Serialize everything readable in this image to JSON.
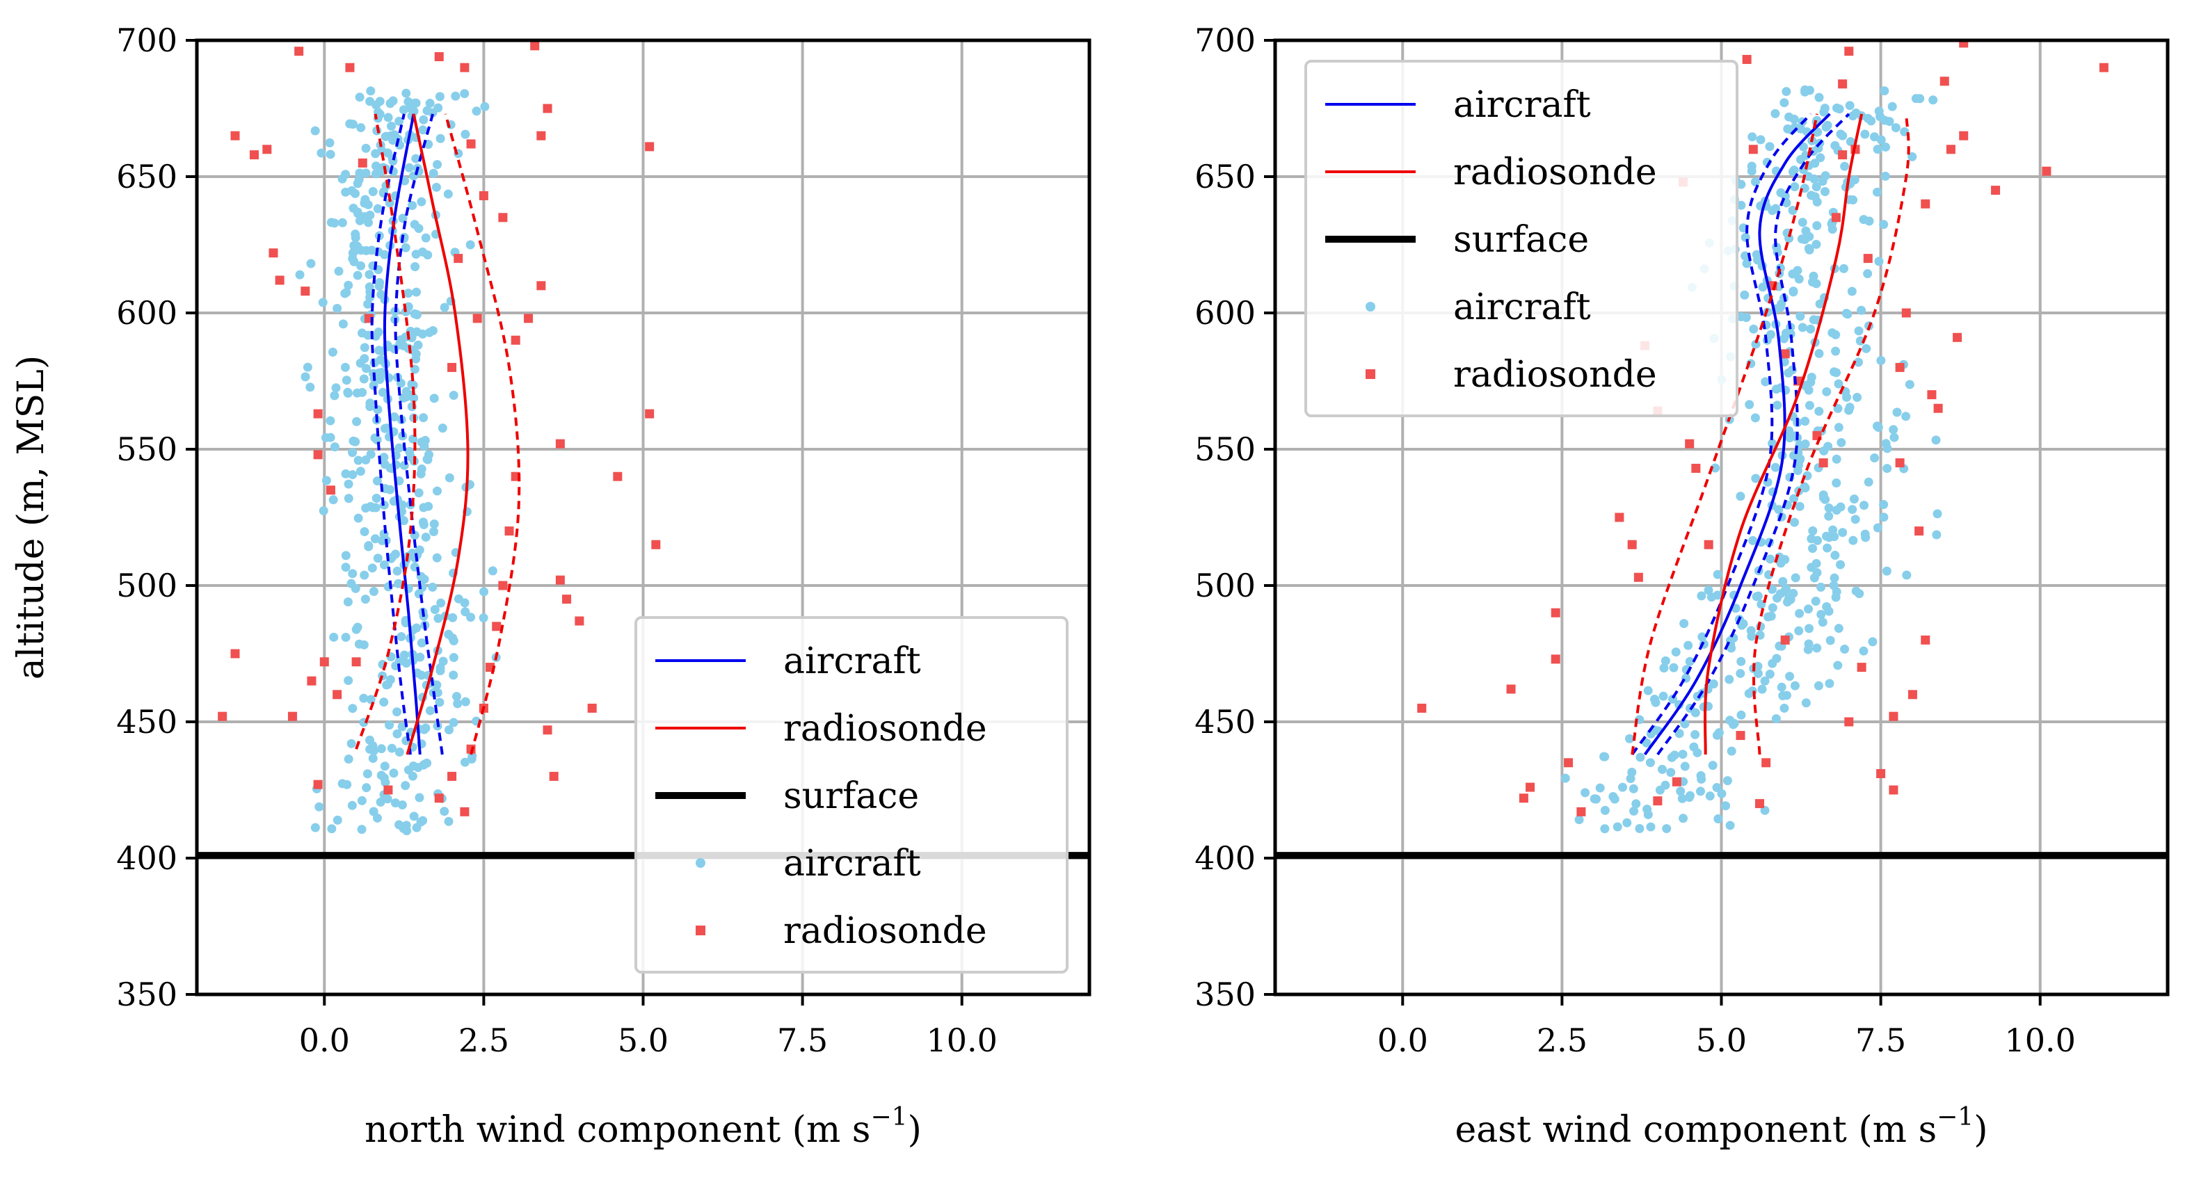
{
  "chart_data": [
    {
      "type": "scatter",
      "panel": "left",
      "xlabel": "north wind component (m s",
      "xlabel_exponent": "−1",
      "xlabel_close": ")",
      "ylabel": "altitude (m, MSL)",
      "xlim": [
        -2.0,
        12.0
      ],
      "ylim": [
        350,
        700
      ],
      "xticks": [
        0.0,
        2.5,
        5.0,
        7.5,
        10.0
      ],
      "xtick_labels": [
        "0.0",
        "2.5",
        "5.0",
        "7.5",
        "10.0"
      ],
      "yticks": [
        350,
        400,
        450,
        500,
        550,
        600,
        650,
        700
      ],
      "ytick_labels": [
        "350",
        "400",
        "450",
        "500",
        "550",
        "600",
        "650",
        "700"
      ],
      "grid": true,
      "legend_position": "lower-right",
      "surface_altitude": 401,
      "series": [
        {
          "name": "aircraft",
          "kind": "line",
          "color": "#0000ee",
          "points": [
            [
              1.5,
              438
            ],
            [
              1.43,
              460
            ],
            [
              1.32,
              490
            ],
            [
              1.15,
              530
            ],
            [
              1.0,
              570
            ],
            [
              0.95,
              600
            ],
            [
              1.1,
              635
            ],
            [
              1.4,
              673
            ]
          ]
        },
        {
          "name": "aircraft upper bound",
          "kind": "dashed",
          "color": "#0000ee",
          "points": [
            [
              1.85,
              438
            ],
            [
              1.72,
              460
            ],
            [
              1.55,
              490
            ],
            [
              1.35,
              530
            ],
            [
              1.18,
              570
            ],
            [
              1.12,
              600
            ],
            [
              1.28,
              635
            ],
            [
              1.7,
              673
            ]
          ]
        },
        {
          "name": "aircraft lower bound",
          "kind": "dashed",
          "color": "#0000ee",
          "points": [
            [
              1.35,
              438
            ],
            [
              1.22,
              460
            ],
            [
              1.08,
              490
            ],
            [
              0.92,
              530
            ],
            [
              0.8,
              570
            ],
            [
              0.75,
              600
            ],
            [
              0.9,
              635
            ],
            [
              1.25,
              673
            ]
          ]
        },
        {
          "name": "radiosonde",
          "kind": "line",
          "color": "#ee0000",
          "points": [
            [
              1.3,
              438
            ],
            [
              1.7,
              470
            ],
            [
              2.1,
              510
            ],
            [
              2.25,
              550
            ],
            [
              2.05,
              600
            ],
            [
              1.7,
              640
            ],
            [
              1.4,
              673
            ]
          ]
        },
        {
          "name": "radiosonde upper bound",
          "kind": "dashed",
          "color": "#ee0000",
          "points": [
            [
              2.3,
              438
            ],
            [
              2.75,
              480
            ],
            [
              3.05,
              530
            ],
            [
              2.9,
              580
            ],
            [
              2.4,
              630
            ],
            [
              1.9,
              673
            ]
          ]
        },
        {
          "name": "radiosonde lower bound",
          "kind": "dashed",
          "color": "#ee0000",
          "points": [
            [
              0.5,
              440
            ],
            [
              1.0,
              475
            ],
            [
              1.35,
              520
            ],
            [
              1.4,
              570
            ],
            [
              1.1,
              630
            ],
            [
              0.8,
              673
            ]
          ]
        },
        {
          "name": "aircraft",
          "kind": "scatter",
          "color": "#87ceeb",
          "x_center_by_altitude": [
            [
              410,
              1.0
            ],
            [
              440,
              1.2
            ],
            [
              480,
              1.4
            ],
            [
              520,
              1.1
            ],
            [
              560,
              0.9
            ],
            [
              600,
              0.9
            ],
            [
              640,
              1.1
            ],
            [
              680,
              1.3
            ]
          ],
          "x_spread": 1.2,
          "count": 520
        },
        {
          "name": "radiosonde",
          "kind": "scatter",
          "color": "#f05050",
          "points": [
            [
              -1.6,
              452
            ],
            [
              -1.4,
              475
            ],
            [
              -1.4,
              665
            ],
            [
              -1.1,
              658
            ],
            [
              -0.9,
              660
            ],
            [
              -0.8,
              622
            ],
            [
              -0.7,
              612
            ],
            [
              -0.5,
              452
            ],
            [
              -0.4,
              696
            ],
            [
              -0.3,
              608
            ],
            [
              -0.2,
              465
            ],
            [
              -0.1,
              563
            ],
            [
              -0.1,
              548
            ],
            [
              -0.1,
              427
            ],
            [
              0.0,
              472
            ],
            [
              0.1,
              535
            ],
            [
              0.2,
              460
            ],
            [
              0.4,
              690
            ],
            [
              0.5,
              472
            ],
            [
              0.6,
              655
            ],
            [
              0.7,
              598
            ],
            [
              1.0,
              425
            ],
            [
              1.8,
              422
            ],
            [
              2.0,
              430
            ],
            [
              2.2,
              417
            ],
            [
              2.3,
              440
            ],
            [
              2.5,
              455
            ],
            [
              2.6,
              470
            ],
            [
              2.7,
              485
            ],
            [
              2.8,
              500
            ],
            [
              2.9,
              520
            ],
            [
              3.0,
              540
            ],
            [
              2.4,
              598
            ],
            [
              2.0,
              580
            ],
            [
              2.1,
              620
            ],
            [
              1.8,
              694
            ],
            [
              2.2,
              690
            ],
            [
              2.3,
              662
            ],
            [
              2.5,
              643
            ],
            [
              2.8,
              635
            ],
            [
              3.0,
              590
            ],
            [
              3.2,
              598
            ],
            [
              3.4,
              610
            ],
            [
              3.4,
              665
            ],
            [
              3.3,
              698
            ],
            [
              3.5,
              675
            ],
            [
              3.6,
              430
            ],
            [
              3.7,
              552
            ],
            [
              3.7,
              502
            ],
            [
              3.8,
              495
            ],
            [
              4.0,
              487
            ],
            [
              4.2,
              455
            ],
            [
              4.6,
              540
            ],
            [
              5.1,
              563
            ],
            [
              5.1,
              661
            ],
            [
              5.2,
              515
            ],
            [
              3.5,
              447
            ]
          ]
        }
      ],
      "legend": [
        {
          "label": "aircraft",
          "kind": "line",
          "color": "#0000ee"
        },
        {
          "label": "radiosonde",
          "kind": "line",
          "color": "#ee0000"
        },
        {
          "label": "surface",
          "kind": "thick",
          "color": "#000000"
        },
        {
          "label": "aircraft",
          "kind": "dot",
          "color": "#87ceeb"
        },
        {
          "label": "radiosonde",
          "kind": "square",
          "color": "#f05050"
        }
      ]
    },
    {
      "type": "scatter",
      "panel": "right",
      "xlabel": "east wind component (m s",
      "xlabel_exponent": "−1",
      "xlabel_close": ")",
      "ylabel": "",
      "xlim": [
        -2.0,
        12.0
      ],
      "ylim": [
        350,
        700
      ],
      "xticks": [
        0.0,
        2.5,
        5.0,
        7.5,
        10.0
      ],
      "xtick_labels": [
        "0.0",
        "2.5",
        "5.0",
        "7.5",
        "10.0"
      ],
      "yticks": [
        350,
        400,
        450,
        500,
        550,
        600,
        650,
        700
      ],
      "ytick_labels": [
        "350",
        "400",
        "450",
        "500",
        "550",
        "600",
        "650",
        "700"
      ],
      "grid": true,
      "legend_position": "upper-left",
      "surface_altitude": 401,
      "series": [
        {
          "name": "aircraft",
          "kind": "line",
          "color": "#0000ee",
          "points": [
            [
              3.8,
              438
            ],
            [
              4.6,
              465
            ],
            [
              5.3,
              500
            ],
            [
              5.95,
              545
            ],
            [
              5.9,
              590
            ],
            [
              5.6,
              630
            ],
            [
              6.0,
              655
            ],
            [
              6.7,
              673
            ]
          ]
        },
        {
          "name": "aircraft upper bound",
          "kind": "dashed",
          "color": "#0000ee",
          "points": [
            [
              4.0,
              438
            ],
            [
              4.8,
              465
            ],
            [
              5.5,
              500
            ],
            [
              6.15,
              545
            ],
            [
              6.1,
              590
            ],
            [
              5.85,
              630
            ],
            [
              6.3,
              655
            ],
            [
              7.0,
              673
            ]
          ]
        },
        {
          "name": "aircraft lower bound",
          "kind": "dashed",
          "color": "#0000ee",
          "points": [
            [
              3.6,
              438
            ],
            [
              4.4,
              465
            ],
            [
              5.1,
              500
            ],
            [
              5.75,
              545
            ],
            [
              5.7,
              590
            ],
            [
              5.4,
              630
            ],
            [
              5.75,
              655
            ],
            [
              6.4,
              673
            ]
          ]
        },
        {
          "name": "radiosonde",
          "kind": "line",
          "color": "#ee0000",
          "points": [
            [
              4.75,
              438
            ],
            [
              4.8,
              470
            ],
            [
              5.3,
              520
            ],
            [
              6.2,
              570
            ],
            [
              6.8,
              620
            ],
            [
              7.0,
              650
            ],
            [
              7.2,
              673
            ]
          ]
        },
        {
          "name": "radiosonde upper bound",
          "kind": "dashed",
          "color": "#ee0000",
          "points": [
            [
              5.6,
              438
            ],
            [
              5.55,
              480
            ],
            [
              6.3,
              540
            ],
            [
              7.4,
              600
            ],
            [
              7.9,
              650
            ],
            [
              7.9,
              673
            ]
          ]
        },
        {
          "name": "radiosonde lower bound",
          "kind": "dashed",
          "color": "#ee0000",
          "points": [
            [
              3.6,
              438
            ],
            [
              3.9,
              480
            ],
            [
              4.8,
              540
            ],
            [
              5.7,
              600
            ],
            [
              6.2,
              640
            ],
            [
              6.5,
              673
            ]
          ]
        },
        {
          "name": "aircraft",
          "kind": "scatter",
          "color": "#87ceeb",
          "x_center_by_altitude": [
            [
              410,
              3.8
            ],
            [
              440,
              4.2
            ],
            [
              480,
              5.8
            ],
            [
              520,
              6.6
            ],
            [
              560,
              6.6
            ],
            [
              600,
              6.2
            ],
            [
              640,
              6.3
            ],
            [
              680,
              7.0
            ]
          ],
          "x_spread": 1.6,
          "count": 520
        },
        {
          "name": "radiosonde",
          "kind": "scatter",
          "color": "#f05050",
          "points": [
            [
              0.3,
              455
            ],
            [
              1.7,
              462
            ],
            [
              1.9,
              422
            ],
            [
              2.0,
              426
            ],
            [
              2.4,
              490
            ],
            [
              2.4,
              473
            ],
            [
              2.6,
              435
            ],
            [
              2.8,
              417
            ],
            [
              3.4,
              525
            ],
            [
              3.6,
              515
            ],
            [
              3.7,
              503
            ],
            [
              3.8,
              588
            ],
            [
              4.0,
              564
            ],
            [
              4.0,
              421
            ],
            [
              4.3,
              428
            ],
            [
              4.4,
              648
            ],
            [
              4.5,
              552
            ],
            [
              4.6,
              543
            ],
            [
              4.8,
              515
            ],
            [
              5.3,
              445
            ],
            [
              5.4,
              693
            ],
            [
              5.5,
              660
            ],
            [
              5.6,
              420
            ],
            [
              5.8,
              610
            ],
            [
              6.0,
              585
            ],
            [
              6.2,
              575
            ],
            [
              6.0,
              480
            ],
            [
              6.5,
              555
            ],
            [
              6.6,
              545
            ],
            [
              6.8,
              635
            ],
            [
              6.9,
              658
            ],
            [
              6.9,
              684
            ],
            [
              7.0,
              696
            ],
            [
              7.0,
              450
            ],
            [
              7.1,
              660
            ],
            [
              7.3,
              620
            ],
            [
              7.5,
              431
            ],
            [
              7.7,
              452
            ],
            [
              7.8,
              580
            ],
            [
              7.8,
              545
            ],
            [
              8.0,
              460
            ],
            [
              7.9,
              600
            ],
            [
              8.2,
              640
            ],
            [
              8.3,
              570
            ],
            [
              8.5,
              685
            ],
            [
              8.6,
              660
            ],
            [
              8.7,
              591
            ],
            [
              8.8,
              699
            ],
            [
              8.8,
              665
            ],
            [
              8.4,
              565
            ],
            [
              8.2,
              480
            ],
            [
              9.3,
              645
            ],
            [
              10.1,
              652
            ],
            [
              11.0,
              690
            ],
            [
              8.1,
              520
            ],
            [
              7.7,
              425
            ],
            [
              7.2,
              470
            ],
            [
              5.7,
              435
            ]
          ]
        }
      ],
      "legend": [
        {
          "label": "aircraft",
          "kind": "line",
          "color": "#0000ee"
        },
        {
          "label": "radiosonde",
          "kind": "line",
          "color": "#ee0000"
        },
        {
          "label": "surface",
          "kind": "thick",
          "color": "#000000"
        },
        {
          "label": "aircraft",
          "kind": "dot",
          "color": "#87ceeb"
        },
        {
          "label": "radiosonde",
          "kind": "square",
          "color": "#f05050"
        }
      ]
    }
  ]
}
